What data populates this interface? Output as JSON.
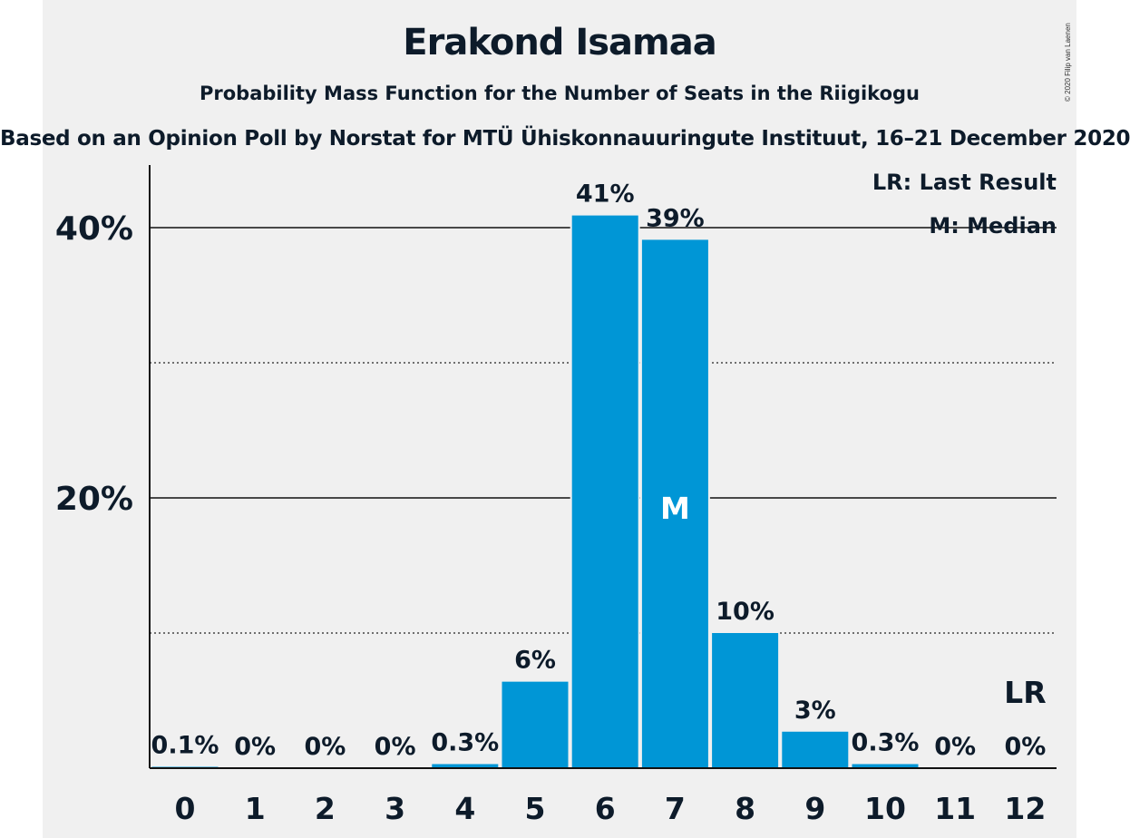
{
  "chart_data": {
    "type": "bar",
    "title": "Erakond Isamaa",
    "subtitle": "Probability Mass Function for the Number of Seats in the Riigikogu",
    "subtitle2": "Based on an Opinion Poll by Norstat for MTÜ Ühiskonnauuringute Instituut, 16–21 December 2020",
    "copyright": "© 2020 Filip van Laenen",
    "categories": [
      "0",
      "1",
      "2",
      "3",
      "4",
      "5",
      "6",
      "7",
      "8",
      "9",
      "10",
      "11",
      "12"
    ],
    "values": [
      0.1,
      0,
      0,
      0,
      0.3,
      6.4,
      40.9,
      39.1,
      10.0,
      2.7,
      0.3,
      0,
      0
    ],
    "value_labels": [
      "0.1%",
      "0%",
      "0%",
      "0%",
      "0.3%",
      "6%",
      "41%",
      "39%",
      "10%",
      "3%",
      "0.3%",
      "0%",
      "0%"
    ],
    "ylim": [
      0,
      44
    ],
    "yticks": [
      {
        "value": 20,
        "label": "20%"
      },
      {
        "value": 40,
        "label": "40%"
      }
    ],
    "minor_gridlines": [
      10,
      30
    ],
    "median_index": 7,
    "median_marker": "M",
    "last_result_index": 12,
    "last_result_marker": "LR",
    "legend": [
      "LR: Last Result",
      "M: Median"
    ],
    "bar_color": "#0096d6",
    "grid": true
  }
}
